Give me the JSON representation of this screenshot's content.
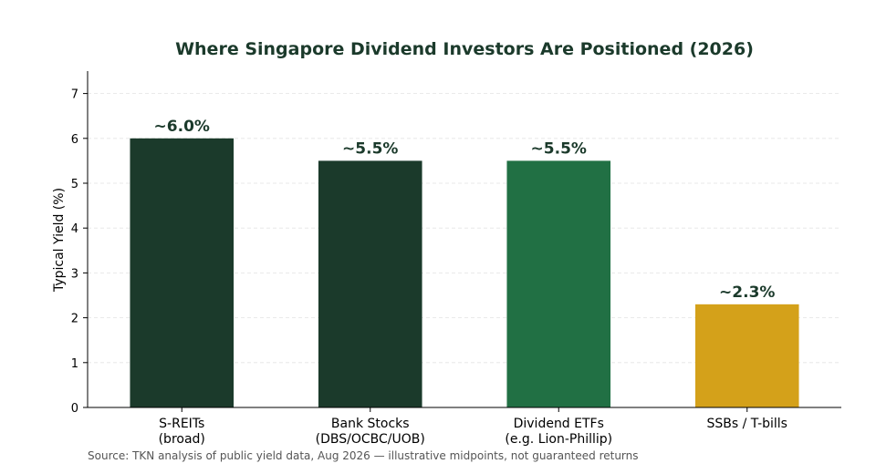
{
  "chart_data": {
    "type": "bar",
    "title": "Where Singapore Dividend Investors Are Positioned (2026)",
    "ylabel": "Typical Yield (%)",
    "xlabel": "",
    "ylim": [
      0,
      7.5
    ],
    "yticks": [
      0,
      1,
      2,
      3,
      4,
      5,
      6,
      7
    ],
    "grid": true,
    "categories": [
      [
        "S-REITs",
        "(broad)"
      ],
      [
        "Bank Stocks",
        "(DBS/OCBC/UOB)"
      ],
      [
        "Dividend ETFs",
        "(e.g. Lion-Phillip)"
      ],
      [
        "SSBs / T-bills"
      ]
    ],
    "values": [
      6.0,
      5.5,
      5.5,
      2.3
    ],
    "data_labels": [
      "~6.0%",
      "~5.5%",
      "~5.5%",
      "~2.3%"
    ],
    "colors": [
      "#1b3a2b",
      "#1b3a2b",
      "#217044",
      "#d4a11a"
    ]
  },
  "source": "Source: TKN analysis of public yield data, Aug 2026 — illustrative midpoints, not guaranteed returns"
}
